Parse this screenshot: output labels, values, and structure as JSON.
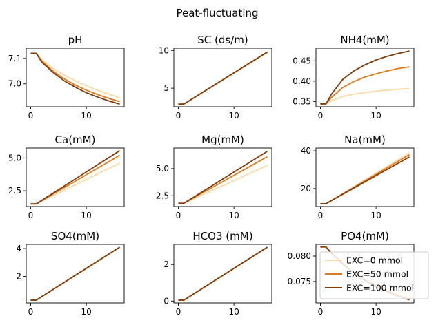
{
  "suptitle": "Peat-fluctuating",
  "legend": {
    "location": "lower-right of last panel",
    "entries": [
      {
        "label": "EXC=0 mmol",
        "color": "#fdd9a8"
      },
      {
        "label": "EXC=50 mmol",
        "color": "#e0791b"
      },
      {
        "label": "EXC=100 mmol",
        "color": "#7f3b08"
      }
    ]
  },
  "chart_data": [
    {
      "type": "line",
      "title": "pH",
      "xlim": [
        -0.8,
        16.8
      ],
      "ylim": [
        6.91,
        7.14
      ],
      "xticks": [
        0,
        10
      ],
      "yticks": [
        7.0,
        7.1
      ],
      "ytick_labels": [
        "7.0",
        "7.1"
      ],
      "series": [
        {
          "label": "EXC=0 mmol",
          "color": "#fdd9a8",
          "x": [
            0,
            1,
            2,
            4,
            6,
            8,
            10,
            12,
            14,
            16
          ],
          "y": [
            7.12,
            7.12,
            7.095,
            7.06,
            7.035,
            7.012,
            6.992,
            6.975,
            6.96,
            6.945
          ]
        },
        {
          "label": "EXC=50 mmol",
          "color": "#e0791b",
          "x": [
            0,
            1,
            2,
            4,
            6,
            8,
            10,
            12,
            14,
            16
          ],
          "y": [
            7.12,
            7.12,
            7.09,
            7.05,
            7.02,
            6.995,
            6.975,
            6.958,
            6.943,
            6.93
          ]
        },
        {
          "label": "EXC=100 mmol",
          "color": "#7f3b08",
          "x": [
            0,
            1,
            2,
            4,
            6,
            8,
            10,
            12,
            14,
            16
          ],
          "y": [
            7.12,
            7.12,
            7.085,
            7.045,
            7.012,
            6.987,
            6.965,
            6.948,
            6.933,
            6.92
          ]
        }
      ]
    },
    {
      "type": "line",
      "title": "SC (ds/m)",
      "xlim": [
        -0.8,
        16.8
      ],
      "ylim": [
        2.55,
        10.3
      ],
      "xticks": [
        0,
        10
      ],
      "yticks": [
        5,
        10
      ],
      "ytick_labels": [
        "5",
        "10"
      ],
      "series": [
        {
          "label": "EXC=0 mmol",
          "color": "#fdd9a8",
          "x": [
            0,
            1,
            16
          ],
          "y": [
            2.9,
            2.9,
            9.75
          ]
        },
        {
          "label": "EXC=50 mmol",
          "color": "#e0791b",
          "x": [
            0,
            1,
            16
          ],
          "y": [
            2.9,
            2.9,
            9.78
          ]
        },
        {
          "label": "EXC=100 mmol",
          "color": "#7f3b08",
          "x": [
            0,
            1,
            16
          ],
          "y": [
            2.9,
            2.9,
            9.8
          ]
        }
      ]
    },
    {
      "type": "line",
      "title": "NH4(mM)",
      "xlim": [
        -0.8,
        16.8
      ],
      "ylim": [
        0.337,
        0.481
      ],
      "xticks": [
        0,
        10
      ],
      "yticks": [
        0.35,
        0.4,
        0.45
      ],
      "ytick_labels": [
        "0.35",
        "0.40",
        "0.45"
      ],
      "series": [
        {
          "label": "EXC=0 mmol",
          "color": "#fdd9a8",
          "x": [
            0,
            1,
            2,
            4,
            6,
            8,
            10,
            12,
            14,
            16
          ],
          "y": [
            0.344,
            0.344,
            0.352,
            0.362,
            0.368,
            0.372,
            0.375,
            0.378,
            0.38,
            0.382
          ]
        },
        {
          "label": "EXC=50 mmol",
          "color": "#e0791b",
          "x": [
            0,
            1,
            2,
            4,
            6,
            8,
            10,
            12,
            14,
            16
          ],
          "y": [
            0.344,
            0.344,
            0.36,
            0.384,
            0.399,
            0.41,
            0.418,
            0.425,
            0.431,
            0.435
          ]
        },
        {
          "label": "EXC=100 mmol",
          "color": "#7f3b08",
          "x": [
            0,
            1,
            2,
            4,
            6,
            8,
            10,
            12,
            14,
            16
          ],
          "y": [
            0.344,
            0.344,
            0.368,
            0.404,
            0.425,
            0.44,
            0.452,
            0.461,
            0.468,
            0.474
          ]
        }
      ]
    },
    {
      "type": "line",
      "title": "Ca(mM)",
      "xlim": [
        -0.8,
        16.8
      ],
      "ylim": [
        1.3,
        5.75
      ],
      "xticks": [
        0,
        10
      ],
      "yticks": [
        2.5,
        5.0
      ],
      "ytick_labels": [
        "2.5",
        "5.0"
      ],
      "series": [
        {
          "label": "EXC=0 mmol",
          "color": "#fdd9a8",
          "x": [
            0,
            1,
            16
          ],
          "y": [
            1.5,
            1.5,
            4.6
          ]
        },
        {
          "label": "EXC=50 mmol",
          "color": "#e0791b",
          "x": [
            0,
            1,
            16
          ],
          "y": [
            1.5,
            1.5,
            5.2
          ]
        },
        {
          "label": "EXC=100 mmol",
          "color": "#7f3b08",
          "x": [
            0,
            1,
            16
          ],
          "y": [
            1.5,
            1.5,
            5.55
          ]
        }
      ]
    },
    {
      "type": "line",
      "title": "Mg(mM)",
      "xlim": [
        -0.8,
        16.8
      ],
      "ylim": [
        1.5,
        6.9
      ],
      "xticks": [
        0,
        10
      ],
      "yticks": [
        2.5,
        5.0
      ],
      "ytick_labels": [
        "2.5",
        "5.0"
      ],
      "series": [
        {
          "label": "EXC=0 mmol",
          "color": "#fdd9a8",
          "x": [
            0,
            1,
            16
          ],
          "y": [
            1.8,
            1.8,
            5.3
          ]
        },
        {
          "label": "EXC=50 mmol",
          "color": "#e0791b",
          "x": [
            0,
            1,
            16
          ],
          "y": [
            1.8,
            1.8,
            6.1
          ]
        },
        {
          "label": "EXC=100 mmol",
          "color": "#7f3b08",
          "x": [
            0,
            1,
            16
          ],
          "y": [
            1.8,
            1.8,
            6.6
          ]
        }
      ]
    },
    {
      "type": "line",
      "title": "Na(mM)",
      "xlim": [
        -0.8,
        16.8
      ],
      "ylim": [
        10.5,
        41.5
      ],
      "xticks": [
        0,
        10
      ],
      "yticks": [
        20,
        40
      ],
      "ytick_labels": [
        "20",
        "40"
      ],
      "series": [
        {
          "label": "EXC=0 mmol",
          "color": "#fdd9a8",
          "x": [
            0,
            1,
            16
          ],
          "y": [
            12,
            12,
            39
          ]
        },
        {
          "label": "EXC=50 mmol",
          "color": "#e0791b",
          "x": [
            0,
            1,
            16
          ],
          "y": [
            12,
            12,
            38
          ]
        },
        {
          "label": "EXC=100 mmol",
          "color": "#7f3b08",
          "x": [
            0,
            1,
            16
          ],
          "y": [
            12,
            12,
            36.8
          ]
        }
      ]
    },
    {
      "type": "line",
      "title": "SO4(mM)",
      "xlim": [
        -0.8,
        16.8
      ],
      "ylim": [
        0.1,
        4.3
      ],
      "xticks": [
        0,
        10
      ],
      "yticks": [
        2,
        4
      ],
      "ytick_labels": [
        "2",
        "4"
      ],
      "series": [
        {
          "label": "EXC=0 mmol",
          "color": "#fdd9a8",
          "x": [
            0,
            1,
            16
          ],
          "y": [
            0.3,
            0.3,
            4.1
          ]
        },
        {
          "label": "EXC=50 mmol",
          "color": "#e0791b",
          "x": [
            0,
            1,
            16
          ],
          "y": [
            0.3,
            0.3,
            4.1
          ]
        },
        {
          "label": "EXC=100 mmol",
          "color": "#7f3b08",
          "x": [
            0,
            1,
            16
          ],
          "y": [
            0.3,
            0.3,
            4.1
          ]
        }
      ]
    },
    {
      "type": "line",
      "title": "HCO3 (mM)",
      "xlim": [
        -0.8,
        16.8
      ],
      "ylim": [
        -0.1,
        3.1
      ],
      "xticks": [
        0,
        10
      ],
      "yticks": [
        0,
        2
      ],
      "ytick_labels": [
        "0",
        "2"
      ],
      "series": [
        {
          "label": "EXC=0 mmol",
          "color": "#fdd9a8",
          "x": [
            0,
            1,
            16
          ],
          "y": [
            0.05,
            0.05,
            2.95
          ]
        },
        {
          "label": "EXC=50 mmol",
          "color": "#e0791b",
          "x": [
            0,
            1,
            16
          ],
          "y": [
            0.05,
            0.05,
            2.95
          ]
        },
        {
          "label": "EXC=100 mmol",
          "color": "#7f3b08",
          "x": [
            0,
            1,
            16
          ],
          "y": [
            0.05,
            0.05,
            2.95
          ]
        }
      ]
    },
    {
      "type": "line",
      "title": "PO4(mM)",
      "xlim": [
        -0.8,
        16.8
      ],
      "ylim": [
        0.0708,
        0.0823
      ],
      "xticks": [
        0,
        10
      ],
      "yticks": [
        0.075,
        0.08
      ],
      "ytick_labels": [
        "0.075",
        "0.080"
      ],
      "series": [
        {
          "label": "EXC=0 mmol",
          "color": "#fdd9a8",
          "x": [
            0,
            1,
            2,
            4,
            6,
            8,
            10,
            12,
            14,
            16
          ],
          "y": [
            0.0818,
            0.0818,
            0.0806,
            0.0786,
            0.0769,
            0.0755,
            0.0743,
            0.0733,
            0.0725,
            0.0718
          ]
        },
        {
          "label": "EXC=50 mmol",
          "color": "#e0791b",
          "x": [
            0,
            1,
            2,
            4,
            6,
            8,
            10,
            12,
            14,
            16
          ],
          "y": [
            0.0818,
            0.0818,
            0.0806,
            0.0786,
            0.0768,
            0.0754,
            0.0742,
            0.0732,
            0.0723,
            0.0716
          ]
        },
        {
          "label": "EXC=100 mmol",
          "color": "#7f3b08",
          "x": [
            0,
            1,
            2,
            4,
            6,
            8,
            10,
            12,
            14,
            16
          ],
          "y": [
            0.0818,
            0.0818,
            0.0805,
            0.0784,
            0.0767,
            0.0752,
            0.074,
            0.073,
            0.0721,
            0.0714
          ]
        }
      ]
    }
  ]
}
